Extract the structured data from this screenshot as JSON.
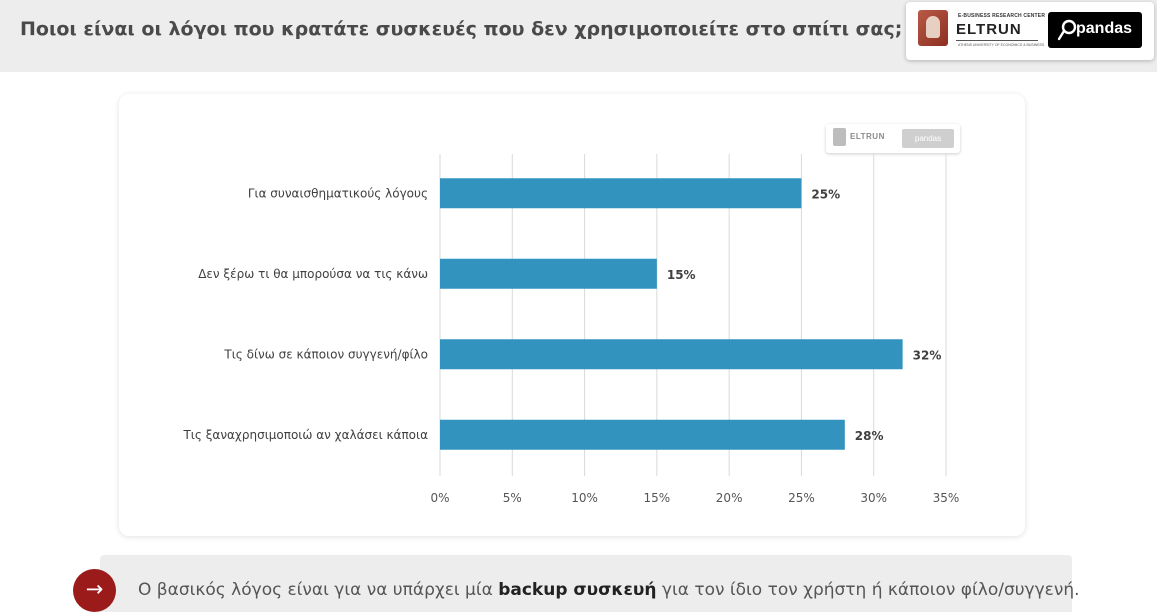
{
  "header": {
    "title": "Ποιοι είναι οι λόγοι που κρατάτε συσκευές που δεν χρησιμοποιείτε στο σπίτι σας;"
  },
  "logos": {
    "eltrun_top": "E-BUSINESS RESEARCH CENTER",
    "eltrun_name": "ELTRUN",
    "eltrun_sub": "ATHENS UNIVERSITY OF ECONOMICS & BUSINESS",
    "pandas_name": "pandas"
  },
  "chart_data": {
    "type": "bar",
    "orientation": "horizontal",
    "categories": [
      "Για συναισθηματικούς λόγους",
      "Δεν ξέρω τι θα μπορούσα να τις κάνω",
      "Τις δίνω σε κάποιον συγγενή/φίλο",
      "Τις ξαναχρησιμοποιώ αν χαλάσει κάποια"
    ],
    "values": [
      25,
      15,
      32,
      28
    ],
    "data_labels": [
      "25%",
      "15%",
      "32%",
      "28%"
    ],
    "xlim": [
      0,
      35
    ],
    "xticks": [
      0,
      5,
      10,
      15,
      20,
      25,
      30,
      35
    ],
    "xtick_labels": [
      "0%",
      "5%",
      "10%",
      "15%",
      "20%",
      "25%",
      "30%",
      "35%"
    ],
    "grid": true,
    "bar_color": "#3393bf",
    "title": "",
    "xlabel": "",
    "ylabel": ""
  },
  "footer": {
    "arrow_icon": "→",
    "text_before": "Ο βασικός λόγος είναι για να υπάρχει μία ",
    "text_bold": "backup συσκευή",
    "text_after": " για τον ίδιο τον χρήστη ή κάποιον φίλο/συγγενή."
  },
  "colors": {
    "accent": "#9b1b1b",
    "bar": "#3393bf",
    "header_bg": "#ededed"
  }
}
